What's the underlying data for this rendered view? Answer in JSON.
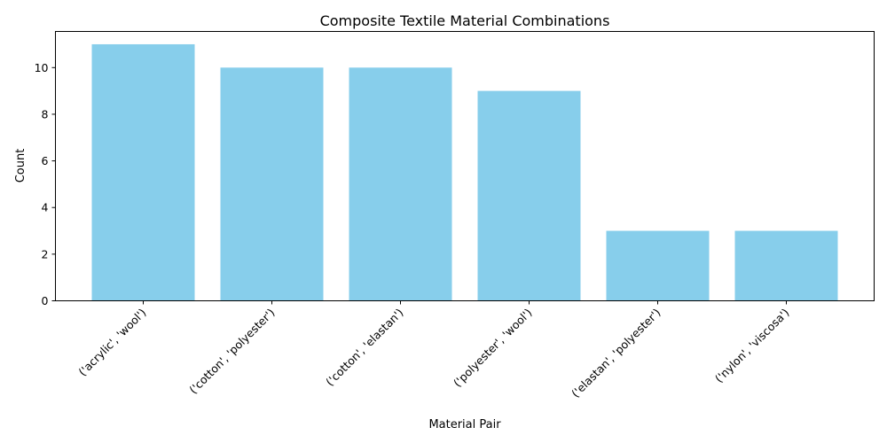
{
  "chart_data": {
    "type": "bar",
    "title": "Composite Textile Material Combinations",
    "xlabel": "Material Pair",
    "ylabel": "Count",
    "categories": [
      "('acrylic', 'wool')",
      "('cotton', 'polyester')",
      "('cotton', 'elastan')",
      "('polyester', 'wool')",
      "('elastan', 'polyester')",
      "('nylon', 'viscosa')"
    ],
    "values": [
      11,
      10,
      10,
      9,
      3,
      3
    ],
    "ylim": [
      0,
      11.55
    ],
    "yticks": [
      0,
      2,
      4,
      6,
      8,
      10
    ],
    "grid": false,
    "bar_color": "#87CEEB"
  }
}
